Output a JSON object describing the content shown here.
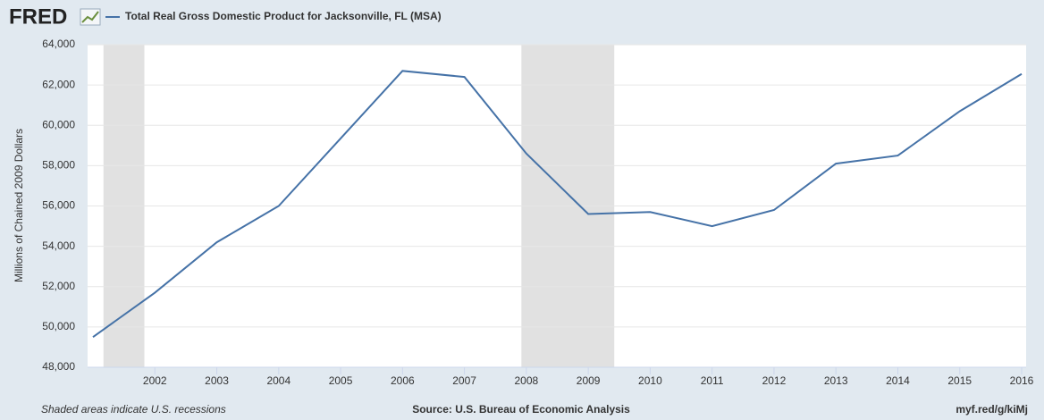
{
  "chart_data": {
    "type": "line",
    "logo": "FRED",
    "ylabel": "Millions of Chained 2009 Dollars",
    "note": "Shaded areas indicate U.S. recessions",
    "source": "Source: U.S. Bureau of Economic Analysis",
    "link": "myf.red/g/kiMj",
    "x": [
      2001,
      2002,
      2003,
      2004,
      2005,
      2006,
      2007,
      2008,
      2009,
      2010,
      2011,
      2012,
      2013,
      2014,
      2015,
      2016
    ],
    "series": [
      {
        "name": "Total Real Gross Domestic Product for Jacksonville, FL (MSA)",
        "color": "#4572a7",
        "values": [
          49500,
          51700,
          54200,
          56000,
          59350,
          62700,
          62400,
          58600,
          55600,
          55700,
          55000,
          55800,
          58100,
          58500,
          60700,
          62550
        ]
      }
    ],
    "recessions": [
      [
        2001.17,
        2001.83
      ],
      [
        2007.92,
        2009.42
      ]
    ],
    "recession_color": "#e1e1e1",
    "xlim": [
      2001,
      2016
    ],
    "xticks": [
      2002,
      2003,
      2004,
      2005,
      2006,
      2007,
      2008,
      2009,
      2010,
      2011,
      2012,
      2013,
      2014,
      2015,
      2016
    ],
    "ylim": [
      48000,
      64000
    ],
    "yticks": [
      {
        "value": 48000,
        "label": "48,000"
      },
      {
        "value": 50000,
        "label": "50,000"
      },
      {
        "value": 52000,
        "label": "52,000"
      },
      {
        "value": 54000,
        "label": "54,000"
      },
      {
        "value": 56000,
        "label": "56,000"
      },
      {
        "value": 58000,
        "label": "58,000"
      },
      {
        "value": 60000,
        "label": "60,000"
      },
      {
        "value": 62000,
        "label": "62,000"
      },
      {
        "value": 64000,
        "label": "64,000"
      }
    ],
    "grid": true
  }
}
